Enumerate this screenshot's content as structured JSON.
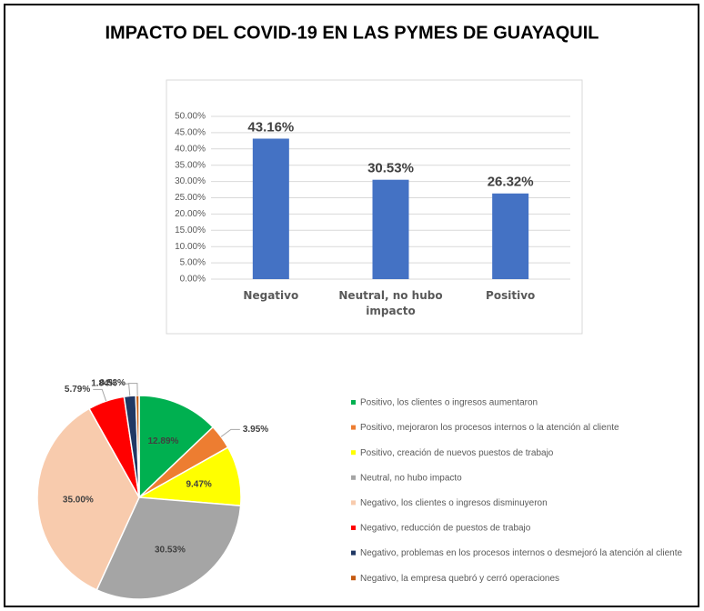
{
  "title": "IMPACTO DEL COVID-19 EN LAS PYMES DE GUAYAQUIL",
  "chart_data": [
    {
      "type": "bar",
      "categories": [
        "Negativo",
        "Neutral, no hubo impacto",
        "Positivo"
      ],
      "values": [
        43.16,
        30.53,
        26.32
      ],
      "value_labels": [
        "43.16%",
        "30.53%",
        "26.32%"
      ],
      "color": "#4472c4",
      "ylim": [
        0,
        50
      ],
      "yticks": [
        {
          "value": 0,
          "label": "0.00%"
        },
        {
          "value": 5,
          "label": "5.00%"
        },
        {
          "value": 10,
          "label": "10.00%"
        },
        {
          "value": 15,
          "label": "15.00%"
        },
        {
          "value": 20,
          "label": "20.00%"
        },
        {
          "value": 25,
          "label": "25.00%"
        },
        {
          "value": 30,
          "label": "30.00%"
        },
        {
          "value": 35,
          "label": "35.00%"
        },
        {
          "value": 40,
          "label": "40.00%"
        },
        {
          "value": 45,
          "label": "45.00%"
        },
        {
          "value": 50,
          "label": "50.00%"
        }
      ],
      "grid": true
    },
    {
      "type": "pie",
      "categories": [
        "Positivo, los clientes o ingresos aumentaron",
        "Positivo, mejoraron los procesos internos o la atención al cliente",
        "Positivo, creación de nuevos puestos de trabajo",
        "Neutral, no hubo impacto",
        "Negativo, los clientes o ingresos disminuyeron",
        "Negativo, reducción de puestos de trabajo",
        "Negativo, problemas en los procesos internos o desmejoró la atención al cliente",
        "Negativo, la empresa quebró y cerró operaciones"
      ],
      "values": [
        12.89,
        3.95,
        9.47,
        30.53,
        35.0,
        5.79,
        1.84,
        0.53
      ],
      "value_labels": [
        "12.89%",
        "3.95%",
        "9.47%",
        "30.53%",
        "35.00%",
        "5.79%",
        "1.84%",
        "0.53%"
      ],
      "colors": [
        "#00b050",
        "#ed7d31",
        "#ffff00",
        "#a5a5a5",
        "#f8cbad",
        "#ff0000",
        "#203864",
        "#c55a11"
      ],
      "legend": "right"
    }
  ]
}
